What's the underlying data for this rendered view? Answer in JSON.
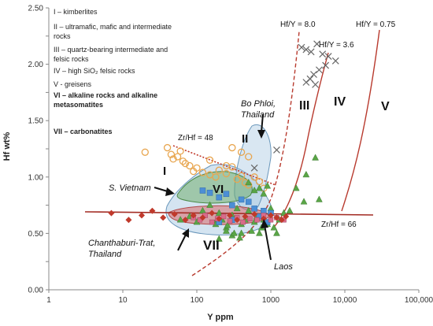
{
  "chart_data": {
    "type": "scatter",
    "xscale": "log",
    "xlim": [
      1,
      100000
    ],
    "ylim": [
      0,
      2.5
    ],
    "xlabel": "Y ppm",
    "ylabel": "Hf wt%",
    "xticks": [
      1,
      10,
      100,
      1000,
      10000,
      100000
    ],
    "xtick_labels": [
      "1",
      "10",
      "100",
      "1000",
      "10,000",
      "100,000"
    ],
    "yticks": [
      0,
      0.25,
      0.5,
      0.75,
      1.0,
      1.25,
      1.5,
      1.75,
      2.0,
      2.25,
      2.5
    ],
    "ytick_labels": [
      "0.00",
      "",
      "0.50",
      "",
      "1.00",
      "",
      "1.50",
      "",
      "2.00",
      "",
      "2.50"
    ],
    "legend": [
      "I – kimberlites",
      "II – ultramafic, mafic and intermediate rocks",
      "III – quartz-bearing intermediate and felsic rocks",
      "IV – high SiO₂ felsic rocks",
      "V - greisens",
      "VI – alkaline rocks and alkaline metasomatites",
      "VII – carbonatites"
    ],
    "legend_placement": "top-left",
    "line_labels": [
      "Hf/Y = 8.0",
      "Hf/Y = 3.6",
      "Hf/Y = 0.75",
      "Zr/Hf = 48",
      "Zr/Hf = 66"
    ],
    "region_labels": [
      "I",
      "II",
      "III",
      "IV",
      "V",
      "VI",
      "VII"
    ],
    "annotations": [
      "Bo Phloi, Thailand",
      "S. Vietnam",
      "Chanthaburi-Trat, Thailand",
      "Laos"
    ],
    "colors": {
      "hf_lines": "#b83a2e",
      "zr_hf_48": "#c0392b",
      "zr_hf_66": "#a32c24",
      "circles": "#e8a650",
      "triangles": "#5aa547",
      "squares_blue": "#4c8fd6",
      "squares_pink": "#d96b8a",
      "diamonds": "#c0392b",
      "crosses": "#666666",
      "field_I": "#9fc3df",
      "field_VI": "#6aaa64",
      "field_VII": "#d96a6a"
    },
    "series": [
      {
        "marker": "circle",
        "x": [
          20,
          40,
          45,
          48,
          55,
          60,
          65,
          70,
          80,
          90,
          100,
          120,
          150,
          180,
          200,
          250,
          300,
          350,
          400,
          450,
          500,
          600,
          700,
          800,
          300,
          400,
          500,
          250,
          150
        ],
        "y": [
          1.22,
          1.26,
          1.2,
          1.16,
          1.18,
          1.23,
          1.14,
          1.12,
          1.1,
          1.05,
          1.08,
          1.04,
          1.02,
          1.0,
          1.06,
          1.03,
          1.09,
          0.98,
          1.01,
          0.95,
          0.93,
          1.0,
          0.96,
          0.9,
          1.26,
          1.22,
          1.18,
          1.1,
          1.15
        ]
      },
      {
        "marker": "triangle",
        "x": [
          60,
          80,
          100,
          120,
          150,
          180,
          200,
          250,
          300,
          350,
          400,
          450,
          500,
          550,
          600,
          650,
          700,
          750,
          800,
          900,
          1000,
          1100,
          1200,
          1300,
          1500,
          1800,
          2200,
          2800,
          3000,
          4000,
          4500,
          500,
          600,
          700,
          800,
          900,
          400,
          300,
          250,
          200,
          180,
          220,
          260,
          320,
          380
        ],
        "y": [
          0.62,
          0.65,
          0.6,
          0.7,
          0.75,
          0.6,
          0.68,
          0.55,
          0.66,
          0.72,
          0.58,
          0.62,
          0.7,
          0.52,
          0.6,
          0.65,
          0.5,
          0.55,
          0.62,
          0.58,
          0.72,
          0.55,
          0.5,
          0.62,
          0.68,
          0.7,
          0.9,
          0.78,
          1.02,
          1.17,
          0.8,
          0.95,
          0.88,
          0.9,
          0.85,
          0.92,
          0.5,
          0.48,
          0.52,
          0.45,
          0.58,
          0.62,
          0.57,
          0.5,
          0.46
        ]
      },
      {
        "marker": "square",
        "x": [
          120,
          150,
          200,
          250,
          300,
          400,
          500,
          600,
          800,
          1000,
          300,
          200,
          700,
          900
        ],
        "y": [
          0.88,
          0.86,
          0.82,
          0.85,
          0.75,
          0.8,
          0.78,
          0.72,
          0.7,
          0.68,
          0.62,
          0.6,
          0.65,
          0.6
        ]
      },
      {
        "marker": "pink-square",
        "x": [
          90,
          110,
          130,
          160,
          190,
          230,
          280,
          350,
          420,
          520,
          650,
          800,
          1000,
          1200,
          1500
        ],
        "y": [
          0.64,
          0.62,
          0.66,
          0.6,
          0.63,
          0.65,
          0.61,
          0.64,
          0.6,
          0.63,
          0.62,
          0.66,
          0.62,
          0.64,
          0.62
        ]
      },
      {
        "marker": "diamond",
        "x": [
          7,
          12,
          18,
          25,
          35,
          50,
          70,
          90,
          120,
          160,
          200,
          280,
          350,
          450,
          600,
          800,
          1000,
          1200,
          1400,
          1600
        ],
        "y": [
          0.68,
          0.62,
          0.66,
          0.7,
          0.64,
          0.67,
          0.62,
          0.66,
          0.64,
          0.68,
          0.63,
          0.66,
          0.62,
          0.65,
          0.67,
          0.63,
          0.66,
          0.64,
          0.62,
          0.65
        ]
      },
      {
        "marker": "cross",
        "x": [
          2600,
          3000,
          3500,
          4200,
          5000,
          6000,
          7500,
          5500,
          4500,
          3800,
          3000,
          4000,
          1200,
          600,
          3400
        ],
        "y": [
          2.15,
          2.13,
          2.11,
          2.18,
          2.09,
          2.07,
          2.03,
          1.99,
          1.95,
          1.91,
          1.84,
          1.82,
          1.24,
          1.08,
          1.87
        ]
      }
    ]
  }
}
